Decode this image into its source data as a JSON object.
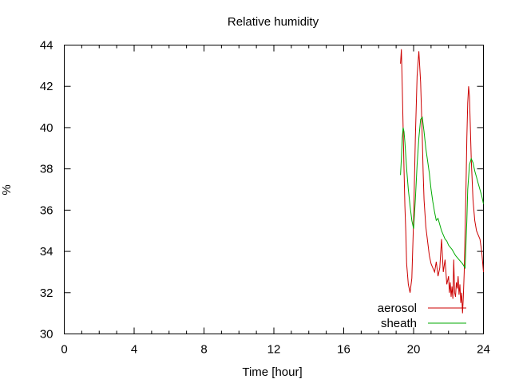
{
  "chart_data": {
    "type": "line",
    "title": "Relative humidity",
    "xlabel": "Time [hour]",
    "ylabel": "%",
    "xlim": [
      0,
      24
    ],
    "ylim": [
      30,
      44
    ],
    "xticks": [
      0,
      4,
      8,
      12,
      16,
      20,
      24
    ],
    "yticks": [
      30,
      32,
      34,
      36,
      38,
      40,
      42,
      44
    ],
    "grid": false,
    "legend_position": "bottom-right",
    "series": [
      {
        "name": "aerosol",
        "color": "#cc0000",
        "x": [
          19.25,
          19.3,
          19.35,
          19.4,
          19.45,
          19.5,
          19.55,
          19.6,
          19.7,
          19.8,
          19.9,
          20.0,
          20.1,
          20.2,
          20.3,
          20.4,
          20.5,
          20.55,
          20.6,
          20.7,
          20.8,
          20.9,
          21.0,
          21.1,
          21.2,
          21.3,
          21.4,
          21.5,
          21.6,
          21.7,
          21.8,
          21.9,
          22.0,
          22.05,
          22.1,
          22.15,
          22.2,
          22.25,
          22.3,
          22.35,
          22.4,
          22.45,
          22.5,
          22.55,
          22.6,
          22.65,
          22.7,
          22.75,
          22.8,
          22.85,
          22.9,
          22.95,
          23.0,
          23.05,
          23.1,
          23.15,
          23.2,
          23.3,
          23.4,
          23.5,
          23.6,
          23.7,
          23.8,
          23.9,
          24.0
        ],
        "values": [
          43.1,
          43.8,
          42.0,
          40.0,
          38.0,
          36.2,
          35.0,
          33.4,
          32.4,
          32.0,
          32.7,
          35.5,
          39.5,
          42.5,
          43.7,
          42.2,
          39.5,
          37.8,
          36.5,
          35.2,
          34.5,
          33.8,
          33.4,
          33.2,
          33.0,
          33.5,
          32.8,
          33.2,
          34.6,
          33.0,
          33.6,
          32.4,
          32.8,
          32.0,
          32.5,
          31.8,
          32.3,
          31.7,
          33.6,
          32.0,
          31.8,
          32.5,
          32.2,
          32.8,
          31.9,
          32.4,
          31.5,
          32.0,
          31.0,
          31.8,
          33.0,
          35.0,
          37.0,
          39.5,
          41.2,
          42.0,
          41.5,
          38.5,
          36.5,
          35.5,
          35.0,
          34.8,
          34.6,
          34.0,
          33.0
        ]
      },
      {
        "name": "sheath",
        "color": "#00aa00",
        "x": [
          19.25,
          19.3,
          19.35,
          19.4,
          19.45,
          19.5,
          19.6,
          19.7,
          19.8,
          19.9,
          20.0,
          20.1,
          20.2,
          20.3,
          20.4,
          20.5,
          20.6,
          20.7,
          20.8,
          20.9,
          21.0,
          21.1,
          21.2,
          21.3,
          21.4,
          21.5,
          21.6,
          21.7,
          21.8,
          21.9,
          22.0,
          22.2,
          22.4,
          22.6,
          22.8,
          22.95,
          23.05,
          23.1,
          23.2,
          23.3,
          23.4,
          23.5,
          23.6,
          23.7,
          23.8,
          23.9,
          24.0
        ],
        "values": [
          37.7,
          38.5,
          39.5,
          40.0,
          39.8,
          39.3,
          38.0,
          37.0,
          36.2,
          35.5,
          35.1,
          36.5,
          38.2,
          39.5,
          40.4,
          40.5,
          39.8,
          39.0,
          38.4,
          37.8,
          37.0,
          36.4,
          35.9,
          35.5,
          35.6,
          35.3,
          35.0,
          34.8,
          34.6,
          34.5,
          34.3,
          34.1,
          33.8,
          33.6,
          33.4,
          33.2,
          35.5,
          37.0,
          38.2,
          38.5,
          38.3,
          37.9,
          37.6,
          37.3,
          37.0,
          36.7,
          36.3
        ]
      }
    ]
  }
}
